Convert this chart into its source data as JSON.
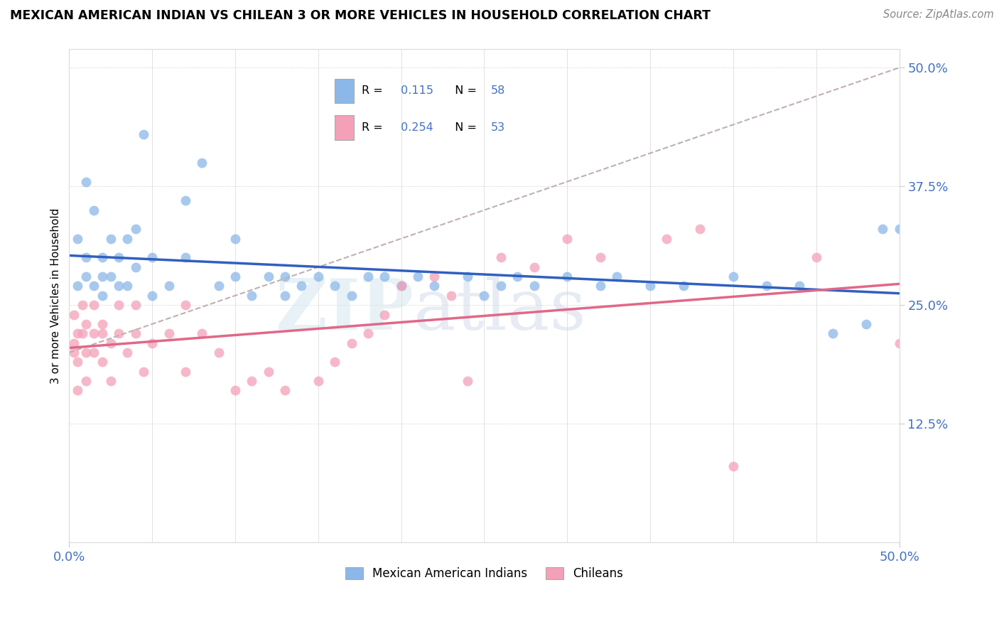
{
  "title": "MEXICAN AMERICAN INDIAN VS CHILEAN 3 OR MORE VEHICLES IN HOUSEHOLD CORRELATION CHART",
  "source": "Source: ZipAtlas.com",
  "ylabel": "3 or more Vehicles in Household",
  "right_yticks": [
    "50.0%",
    "37.5%",
    "25.0%",
    "12.5%"
  ],
  "right_ytick_vals": [
    0.5,
    0.375,
    0.25,
    0.125
  ],
  "legend_bottom1": "Mexican American Indians",
  "legend_bottom2": "Chileans",
  "blue_color": "#8bb8e8",
  "pink_color": "#f4a0b8",
  "line_blue": "#3060c0",
  "line_pink": "#e06888",
  "line_gray": "#c0b0b0",
  "text_blue": "#4472c4",
  "watermark_zip": "ZIP",
  "watermark_atlas": "atlas",
  "blue_R": 0.115,
  "blue_N": 58,
  "pink_R": 0.254,
  "pink_N": 53,
  "blue_scatter_x": [
    0.005,
    0.005,
    0.01,
    0.01,
    0.01,
    0.015,
    0.015,
    0.02,
    0.02,
    0.02,
    0.025,
    0.025,
    0.03,
    0.03,
    0.035,
    0.035,
    0.04,
    0.04,
    0.045,
    0.05,
    0.05,
    0.06,
    0.07,
    0.07,
    0.08,
    0.09,
    0.1,
    0.1,
    0.11,
    0.12,
    0.13,
    0.13,
    0.14,
    0.15,
    0.16,
    0.17,
    0.18,
    0.19,
    0.2,
    0.21,
    0.22,
    0.24,
    0.25,
    0.26,
    0.27,
    0.28,
    0.3,
    0.32,
    0.33,
    0.35,
    0.37,
    0.4,
    0.42,
    0.44,
    0.46,
    0.48,
    0.49,
    0.5
  ],
  "blue_scatter_y": [
    0.27,
    0.32,
    0.28,
    0.3,
    0.38,
    0.27,
    0.35,
    0.26,
    0.28,
    0.3,
    0.28,
    0.32,
    0.27,
    0.3,
    0.27,
    0.32,
    0.29,
    0.33,
    0.43,
    0.26,
    0.3,
    0.27,
    0.3,
    0.36,
    0.4,
    0.27,
    0.28,
    0.32,
    0.26,
    0.28,
    0.26,
    0.28,
    0.27,
    0.28,
    0.27,
    0.26,
    0.28,
    0.28,
    0.27,
    0.28,
    0.27,
    0.28,
    0.26,
    0.27,
    0.28,
    0.27,
    0.28,
    0.27,
    0.28,
    0.27,
    0.27,
    0.28,
    0.27,
    0.27,
    0.22,
    0.23,
    0.33,
    0.33
  ],
  "pink_scatter_x": [
    0.003,
    0.003,
    0.003,
    0.005,
    0.005,
    0.005,
    0.008,
    0.008,
    0.01,
    0.01,
    0.01,
    0.015,
    0.015,
    0.015,
    0.02,
    0.02,
    0.02,
    0.025,
    0.025,
    0.03,
    0.03,
    0.035,
    0.04,
    0.04,
    0.045,
    0.05,
    0.06,
    0.07,
    0.07,
    0.08,
    0.09,
    0.1,
    0.11,
    0.12,
    0.13,
    0.15,
    0.16,
    0.17,
    0.18,
    0.19,
    0.2,
    0.22,
    0.23,
    0.24,
    0.26,
    0.28,
    0.3,
    0.32,
    0.36,
    0.38,
    0.4,
    0.45,
    0.5
  ],
  "pink_scatter_y": [
    0.21,
    0.24,
    0.2,
    0.22,
    0.19,
    0.16,
    0.22,
    0.25,
    0.2,
    0.23,
    0.17,
    0.2,
    0.22,
    0.25,
    0.22,
    0.19,
    0.23,
    0.21,
    0.17,
    0.22,
    0.25,
    0.2,
    0.22,
    0.25,
    0.18,
    0.21,
    0.22,
    0.25,
    0.18,
    0.22,
    0.2,
    0.16,
    0.17,
    0.18,
    0.16,
    0.17,
    0.19,
    0.21,
    0.22,
    0.24,
    0.27,
    0.28,
    0.26,
    0.17,
    0.3,
    0.29,
    0.32,
    0.3,
    0.32,
    0.33,
    0.08,
    0.3,
    0.21
  ],
  "xlim": [
    0.0,
    0.5
  ],
  "ylim": [
    0.0,
    0.52
  ]
}
